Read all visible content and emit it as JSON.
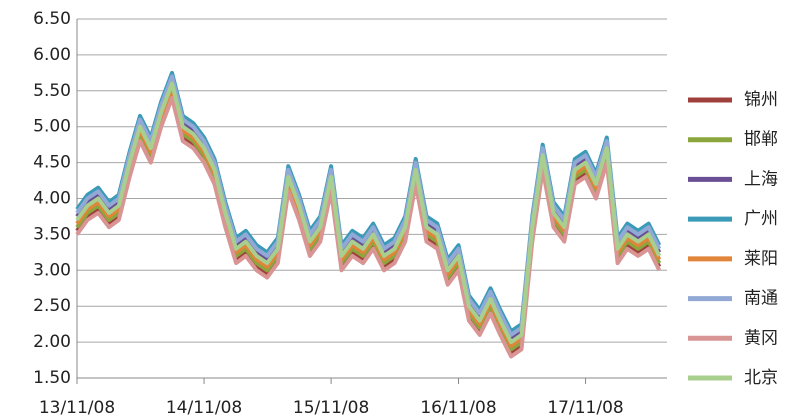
{
  "chart_data": {
    "type": "line",
    "x": [
      "13/11/08",
      "13/12/08",
      "14/01/08",
      "14/02/08",
      "14/03/08",
      "14/04/08",
      "14/05/08",
      "14/06/08",
      "14/07/08",
      "14/08/08",
      "14/09/08",
      "14/10/08",
      "14/11/08",
      "14/12/08",
      "15/01/08",
      "15/02/08",
      "15/03/08",
      "15/04/08",
      "15/05/08",
      "15/06/08",
      "15/07/08",
      "15/08/08",
      "15/09/08",
      "15/10/08",
      "15/11/08",
      "15/12/08",
      "16/01/08",
      "16/02/08",
      "16/03/08",
      "16/04/08",
      "16/05/08",
      "16/06/08",
      "16/07/08",
      "16/08/08",
      "16/09/08",
      "16/10/08",
      "16/11/08",
      "16/12/08",
      "17/01/08",
      "17/02/08",
      "17/03/08",
      "17/04/08",
      "17/05/08",
      "17/06/08",
      "17/07/08",
      "17/08/08",
      "17/09/08",
      "17/10/08",
      "17/11/08",
      "17/12/08",
      "18/01/08",
      "18/02/08",
      "18/03/08",
      "18/04/08",
      "18/05/08",
      "18/06/08"
    ],
    "xlim": [
      "13/11/08",
      "18/06/30"
    ],
    "xticks": [
      "13/11/08",
      "14/11/08",
      "15/11/08",
      "16/11/08",
      "17/11/08"
    ],
    "ylim": [
      1.5,
      6.5
    ],
    "yticks": [
      {
        "value": 1.5,
        "label": "1.50"
      },
      {
        "value": 2,
        "label": "2.00"
      },
      {
        "value": 2.5,
        "label": "2.50"
      },
      {
        "value": 3,
        "label": "3.00"
      },
      {
        "value": 3.5,
        "label": "3.50"
      },
      {
        "value": 4,
        "label": "4.00"
      },
      {
        "value": 4.5,
        "label": "4.50"
      },
      {
        "value": 5,
        "label": "5.00"
      },
      {
        "value": 5.5,
        "label": "5.50"
      },
      {
        "value": 6,
        "label": "6.00"
      },
      {
        "value": 6.5,
        "label": "6.50"
      }
    ],
    "grid": true,
    "legend": "right",
    "series": [
      {
        "name": "锦州",
        "color": "#a0403c",
        "values": [
          3.55,
          3.75,
          3.85,
          3.65,
          3.75,
          4.35,
          4.85,
          4.55,
          5.05,
          5.45,
          4.85,
          4.75,
          4.55,
          4.25,
          3.65,
          3.15,
          3.25,
          3.05,
          2.95,
          3.15,
          4.15,
          3.75,
          3.25,
          3.45,
          4.15,
          3.05,
          3.25,
          3.15,
          3.35,
          3.05,
          3.15,
          3.45,
          4.25,
          3.45,
          3.35,
          2.85,
          3.05,
          2.35,
          2.15,
          2.45,
          2.15,
          1.85,
          1.95,
          3.45,
          4.45,
          3.65,
          3.45,
          4.25,
          4.35,
          4.05,
          4.55,
          3.15,
          3.35,
          3.25,
          3.35,
          3.05
        ]
      },
      {
        "name": "邯郸",
        "color": "#8aa63c",
        "values": [
          3.6,
          3.8,
          3.9,
          3.7,
          3.8,
          4.4,
          4.9,
          4.6,
          5.1,
          5.5,
          4.9,
          4.8,
          4.6,
          4.3,
          3.7,
          3.2,
          3.3,
          3.1,
          3.0,
          3.2,
          4.2,
          3.8,
          3.3,
          3.5,
          4.2,
          3.1,
          3.3,
          3.2,
          3.4,
          3.1,
          3.2,
          3.5,
          4.3,
          3.5,
          3.4,
          2.9,
          3.1,
          2.4,
          2.2,
          2.5,
          2.2,
          1.9,
          2.0,
          3.5,
          4.5,
          3.7,
          3.5,
          4.3,
          4.4,
          4.1,
          4.6,
          3.2,
          3.4,
          3.3,
          3.4,
          3.1
        ]
      },
      {
        "name": "上海",
        "color": "#6a4f94",
        "values": [
          3.75,
          3.95,
          4.05,
          3.85,
          3.95,
          4.55,
          5.05,
          4.75,
          5.25,
          5.65,
          5.05,
          4.95,
          4.75,
          4.45,
          3.85,
          3.35,
          3.45,
          3.25,
          3.15,
          3.35,
          4.35,
          3.95,
          3.45,
          3.65,
          4.35,
          3.25,
          3.45,
          3.35,
          3.55,
          3.25,
          3.35,
          3.65,
          4.45,
          3.65,
          3.55,
          3.05,
          3.25,
          2.55,
          2.35,
          2.65,
          2.35,
          2.05,
          2.15,
          3.65,
          4.65,
          3.85,
          3.65,
          4.45,
          4.55,
          4.25,
          4.75,
          3.35,
          3.55,
          3.45,
          3.55,
          3.25
        ]
      },
      {
        "name": "广州",
        "color": "#3a9ab8",
        "values": [
          3.85,
          4.05,
          4.15,
          3.95,
          4.05,
          4.65,
          5.15,
          4.85,
          5.35,
          5.75,
          5.15,
          5.05,
          4.85,
          4.55,
          3.95,
          3.45,
          3.55,
          3.35,
          3.25,
          3.45,
          4.45,
          4.05,
          3.55,
          3.75,
          4.45,
          3.35,
          3.55,
          3.45,
          3.65,
          3.35,
          3.45,
          3.75,
          4.55,
          3.75,
          3.65,
          3.15,
          3.35,
          2.65,
          2.45,
          2.75,
          2.45,
          2.15,
          2.25,
          3.75,
          4.75,
          3.95,
          3.75,
          4.55,
          4.65,
          4.35,
          4.85,
          3.45,
          3.65,
          3.55,
          3.65,
          3.35
        ]
      },
      {
        "name": "莱阳",
        "color": "#e0853a",
        "values": [
          3.65,
          3.85,
          3.95,
          3.75,
          3.85,
          4.45,
          4.95,
          4.65,
          5.15,
          5.55,
          4.95,
          4.85,
          4.65,
          4.35,
          3.75,
          3.25,
          3.35,
          3.15,
          3.05,
          3.25,
          4.25,
          3.85,
          3.35,
          3.55,
          4.25,
          3.15,
          3.35,
          3.25,
          3.45,
          3.15,
          3.25,
          3.55,
          4.35,
          3.55,
          3.45,
          2.95,
          3.15,
          2.45,
          2.25,
          2.55,
          2.25,
          1.95,
          2.05,
          3.55,
          4.55,
          3.75,
          3.55,
          4.35,
          4.45,
          4.15,
          4.65,
          3.25,
          3.45,
          3.35,
          3.45,
          3.15
        ]
      },
      {
        "name": "南通",
        "color": "#92a9d6",
        "values": [
          3.8,
          4.0,
          4.1,
          3.9,
          4.0,
          4.6,
          5.1,
          4.8,
          5.3,
          5.7,
          5.1,
          5.0,
          4.8,
          4.5,
          3.9,
          3.4,
          3.5,
          3.3,
          3.2,
          3.4,
          4.4,
          4.0,
          3.5,
          3.7,
          4.4,
          3.3,
          3.5,
          3.4,
          3.6,
          3.3,
          3.4,
          3.7,
          4.5,
          3.7,
          3.6,
          3.1,
          3.3,
          2.6,
          2.4,
          2.7,
          2.4,
          2.1,
          2.2,
          3.7,
          4.7,
          3.9,
          3.7,
          4.5,
          4.6,
          4.3,
          4.8,
          3.4,
          3.6,
          3.5,
          3.6,
          3.3
        ]
      },
      {
        "name": "黄冈",
        "color": "#d99494",
        "values": [
          3.5,
          3.7,
          3.8,
          3.6,
          3.7,
          4.3,
          4.8,
          4.5,
          5.0,
          5.4,
          4.8,
          4.7,
          4.5,
          4.2,
          3.6,
          3.1,
          3.2,
          3.0,
          2.9,
          3.1,
          4.1,
          3.7,
          3.2,
          3.4,
          4.1,
          3.0,
          3.2,
          3.1,
          3.3,
          3.0,
          3.1,
          3.4,
          4.2,
          3.4,
          3.3,
          2.8,
          3.0,
          2.3,
          2.1,
          2.4,
          2.1,
          1.8,
          1.9,
          3.4,
          4.4,
          3.6,
          3.4,
          4.2,
          4.3,
          4.0,
          4.5,
          3.1,
          3.3,
          3.2,
          3.3,
          3.0
        ]
      },
      {
        "name": "北京",
        "color": "#a8cf8e",
        "values": [
          3.7,
          3.9,
          4.0,
          3.8,
          3.9,
          4.5,
          5.0,
          4.7,
          5.2,
          5.6,
          5.0,
          4.9,
          4.7,
          4.4,
          3.8,
          3.3,
          3.4,
          3.2,
          3.1,
          3.3,
          4.3,
          3.9,
          3.4,
          3.6,
          4.3,
          3.2,
          3.4,
          3.3,
          3.5,
          3.2,
          3.3,
          3.6,
          4.4,
          3.6,
          3.5,
          3.0,
          3.2,
          2.5,
          2.3,
          2.6,
          2.3,
          2.0,
          2.1,
          3.6,
          4.6,
          3.8,
          3.6,
          4.4,
          4.5,
          4.2,
          4.7,
          3.3,
          3.5,
          3.4,
          3.5,
          3.2
        ]
      }
    ]
  }
}
